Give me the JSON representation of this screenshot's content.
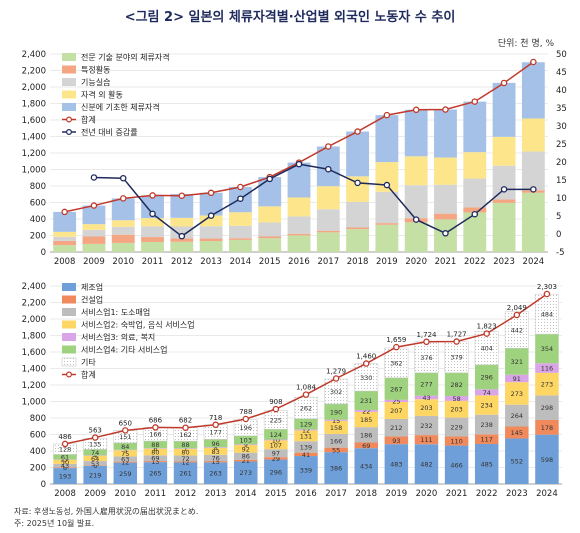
{
  "header": {
    "title": "<그림 2> 일본의 체류자격별·산업별 외국인 노동자 수 추이",
    "unit": "단위: 천 명, %"
  },
  "footer": {
    "source": "자료: 후생노동성, 外国人雇用状況の届出状況まとめ.",
    "note": "주: 2025년 10월 발표."
  },
  "colors": {
    "tech": "#c5e0a5",
    "intern": "#f4a582",
    "skill": "#d4d4d4",
    "activity": "#fde58c",
    "status": "#a6c1e8",
    "total_line": "#c0392b",
    "yoy_line": "#1f2a5c",
    "mfg": "#6f9fd8",
    "constr": "#f08a5d",
    "svc1": "#bdbdbd",
    "svc2": "#fdd663",
    "svc3": "#d9a5e6",
    "svc4": "#9fd27e",
    "other": "#ffffff"
  },
  "chart_data": [
    {
      "type": "bar",
      "stacked": true,
      "categories": [
        "2008",
        "2009",
        "2010",
        "2011",
        "2012",
        "2013",
        "2014",
        "2015",
        "2016",
        "2017",
        "2018",
        "2019",
        "2020",
        "2021",
        "2022",
        "2023",
        "2024"
      ],
      "y_left_ticks": [
        "0",
        "200",
        "400",
        "600",
        "800",
        "1,000",
        "1,200",
        "1,400",
        "1,600",
        "1,800",
        "2,000",
        "2,200",
        "2,400"
      ],
      "y_right_ticks": [
        "-5",
        "0",
        "5",
        "10",
        "15",
        "20",
        "25",
        "30",
        "35",
        "40",
        "45",
        "50"
      ],
      "ylim": [
        0,
        2400
      ],
      "y2lim": [
        -5,
        50
      ],
      "grid": true,
      "legend_position": "top-left",
      "series": [
        {
          "name": "전문 기술 분야의 체류자격",
          "color_key": "tech",
          "values": [
            84,
            98,
            110,
            121,
            124,
            133,
            147,
            168,
            201,
            238,
            277,
            330,
            360,
            395,
            480,
            596,
            718
          ]
        },
        {
          "name": "특정활동",
          "color_key": "intern",
          "values": [
            50,
            90,
            100,
            60,
            40,
            30,
            20,
            20,
            20,
            20,
            20,
            20,
            50,
            70,
            60,
            40,
            30
          ]
        },
        {
          "name": "기능실습",
          "color_key": "skill",
          "values": [
            50,
            80,
            95,
            130,
            145,
            150,
            150,
            170,
            210,
            260,
            310,
            380,
            400,
            350,
            350,
            410,
            470
          ]
        },
        {
          "name": "자격 외 활동",
          "color_key": "activity",
          "values": [
            60,
            70,
            80,
            100,
            105,
            130,
            165,
            195,
            230,
            280,
            310,
            360,
            350,
            330,
            320,
            350,
            400
          ]
        },
        {
          "name": "신분에 기초한 체류자격",
          "color_key": "status",
          "values": [
            242,
            225,
            265,
            275,
            288,
            275,
            306,
            355,
            423,
            481,
            543,
            569,
            564,
            582,
            613,
            654,
            682
          ]
        }
      ],
      "lines": [
        {
          "name": "합계",
          "color_key": "total_line",
          "axis": "left",
          "values": [
            486,
            563,
            650,
            686,
            682,
            718,
            788,
            908,
            1084,
            1279,
            1460,
            1659,
            1724,
            1727,
            1823,
            2049,
            2303
          ]
        },
        {
          "name": "전년 대비 증감률",
          "color_key": "yoy_line",
          "axis": "right",
          "values": [
            null,
            15.7,
            15.5,
            5.6,
            -0.6,
            5.1,
            9.8,
            15.3,
            19.4,
            18.0,
            14.2,
            13.6,
            4.0,
            0.2,
            5.5,
            12.4,
            12.4
          ]
        }
      ]
    },
    {
      "type": "bar",
      "stacked": true,
      "categories": [
        "2008",
        "2009",
        "2010",
        "2011",
        "2012",
        "2013",
        "2014",
        "2015",
        "2016",
        "2017",
        "2018",
        "2019",
        "2020",
        "2021",
        "2022",
        "2023",
        "2024"
      ],
      "y_left_ticks": [
        "0",
        "200",
        "400",
        "600",
        "800",
        "1,000",
        "1,200",
        "1,400",
        "1,600",
        "1,800",
        "2,000",
        "2,200",
        "2,400"
      ],
      "ylim": [
        0,
        2400
      ],
      "grid": true,
      "legend_position": "top-left",
      "series": [
        {
          "name": "제조업",
          "color_key": "mfg",
          "values": [
            193,
            219,
            259,
            265,
            261,
            263,
            273,
            296,
            339,
            386,
            434,
            483,
            482,
            466,
            485,
            552,
            598
          ]
        },
        {
          "name": "건설업",
          "color_key": "constr",
          "values": [
            8,
            6,
            12,
            13,
            12,
            15,
            21,
            29,
            41,
            55,
            69,
            93,
            111,
            110,
            117,
            145,
            178
          ]
        },
        {
          "name": "서비스업1: 도소매업",
          "color_key": "svc1",
          "values": [
            43,
            53,
            63,
            69,
            72,
            76,
            86,
            97,
            139,
            166,
            186,
            212,
            232,
            229,
            238,
            264,
            298
          ]
        },
        {
          "name": "서비스업2: 숙박업, 음식 서비스업",
          "color_key": "svc2",
          "values": [
            50,
            64,
            75,
            80,
            80,
            83,
            92,
            107,
            131,
            158,
            185,
            207,
            203,
            203,
            234,
            273,
            273
          ]
        },
        {
          "name": "서비스업3: 의료, 복지",
          "color_key": "svc3",
          "values": [
            3,
            4,
            5,
            6,
            7,
            8,
            9,
            10,
            12,
            15,
            22,
            25,
            43,
            58,
            74,
            91,
            116
          ]
        },
        {
          "name": "서비스업4: 기타 서비스업",
          "color_key": "svc4",
          "values": [
            61,
            74,
            84,
            88,
            88,
            96,
            103,
            124,
            129,
            190,
            231,
            267,
            277,
            282,
            296,
            321,
            354
          ]
        },
        {
          "name": "기타",
          "color_key": "other",
          "values": [
            128,
            135,
            151,
            166,
            162,
            177,
            196,
            225,
            262,
            302,
            330,
            362,
            376,
            379,
            404,
            442,
            484
          ]
        }
      ],
      "lines": [
        {
          "name": "합계",
          "color_key": "total_line",
          "axis": "left",
          "values": [
            486,
            563,
            650,
            686,
            682,
            718,
            788,
            908,
            1084,
            1279,
            1460,
            1659,
            1724,
            1727,
            1823,
            2049,
            2303
          ]
        }
      ]
    }
  ]
}
